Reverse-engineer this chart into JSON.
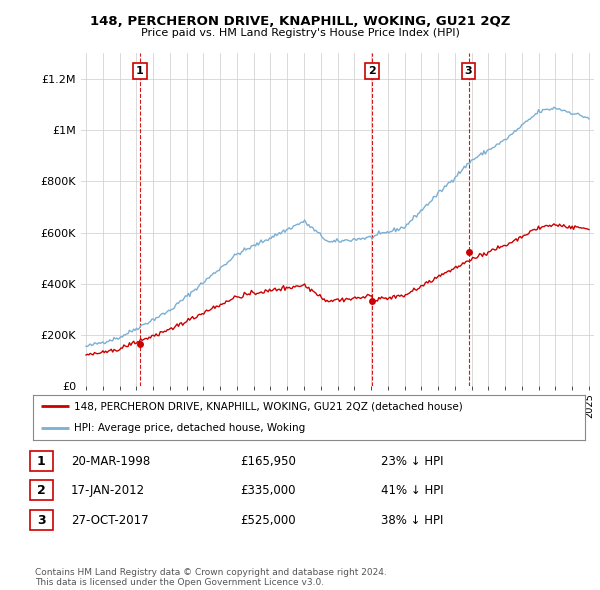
{
  "title": "148, PERCHERON DRIVE, KNAPHILL, WOKING, GU21 2QZ",
  "subtitle": "Price paid vs. HM Land Registry's House Price Index (HPI)",
  "hpi_color": "#7bafd4",
  "price_color": "#cc0000",
  "vline_color": "#cc0000",
  "grid_color": "#cccccc",
  "background_color": "#ffffff",
  "ylim": [
    0,
    1300000
  ],
  "yticks": [
    0,
    200000,
    400000,
    600000,
    800000,
    1000000,
    1200000
  ],
  "ytick_labels": [
    "£0",
    "£200K",
    "£400K",
    "£600K",
    "£800K",
    "£1M",
    "£1.2M"
  ],
  "sales": [
    {
      "date": "20-MAR-1998",
      "price": 165950,
      "label": "1",
      "year": 1998.22
    },
    {
      "date": "17-JAN-2012",
      "price": 335000,
      "label": "2",
      "year": 2012.05
    },
    {
      "date": "27-OCT-2017",
      "price": 525000,
      "label": "3",
      "year": 2017.82
    }
  ],
  "legend_entries": [
    "148, PERCHERON DRIVE, KNAPHILL, WOKING, GU21 2QZ (detached house)",
    "HPI: Average price, detached house, Woking"
  ],
  "table_rows": [
    [
      "1",
      "20-MAR-1998",
      "£165,950",
      "23% ↓ HPI"
    ],
    [
      "2",
      "17-JAN-2012",
      "£335,000",
      "41% ↓ HPI"
    ],
    [
      "3",
      "27-OCT-2017",
      "£525,000",
      "38% ↓ HPI"
    ]
  ],
  "footer": "Contains HM Land Registry data © Crown copyright and database right 2024.\nThis data is licensed under the Open Government Licence v3.0."
}
